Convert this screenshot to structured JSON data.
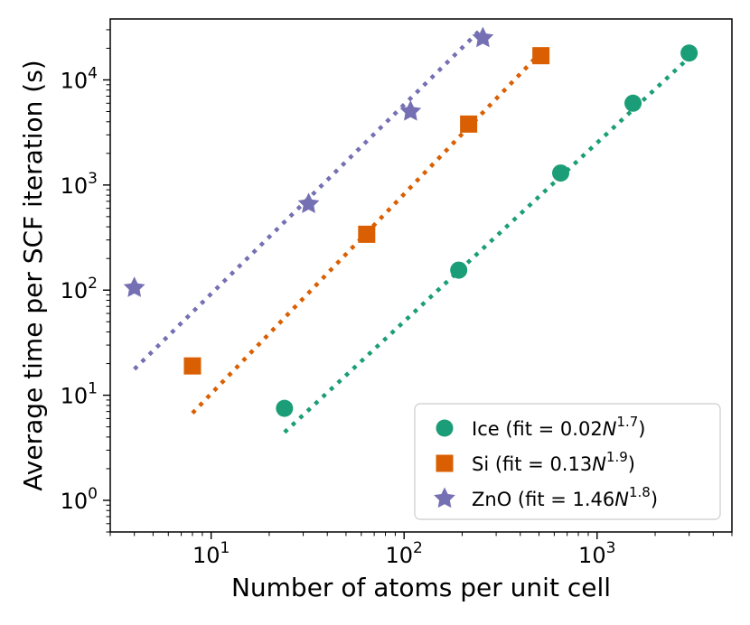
{
  "chart_data": {
    "type": "scatter",
    "scale": {
      "x": "log",
      "y": "log"
    },
    "xlim": [
      3.0,
      5000
    ],
    "ylim": [
      0.5,
      38000
    ],
    "xlabel": "Number of atoms per unit cell",
    "ylabel": "Average time per SCF iteration (s)",
    "x_ticks": [
      {
        "value": 10,
        "base": "10",
        "exp": "1"
      },
      {
        "value": 100,
        "base": "10",
        "exp": "2"
      },
      {
        "value": 1000,
        "base": "10",
        "exp": "3"
      }
    ],
    "y_ticks": [
      {
        "value": 1,
        "base": "10",
        "exp": "0"
      },
      {
        "value": 10,
        "base": "10",
        "exp": "1"
      },
      {
        "value": 100,
        "base": "10",
        "exp": "2"
      },
      {
        "value": 1000,
        "base": "10",
        "exp": "3"
      },
      {
        "value": 10000,
        "base": "10",
        "exp": "4"
      }
    ],
    "legend_position": "lower-right",
    "series": [
      {
        "key": "ice",
        "name": "Ice",
        "legend_prefix": "Ice (fit = 0.02",
        "legend_var": "N",
        "legend_exp": "1.7",
        "legend_suffix": ")",
        "marker": "circle",
        "color": "#1b9e77",
        "x": [
          24,
          192,
          648,
          1536,
          3000
        ],
        "y": [
          7.5,
          155,
          1300,
          6000,
          18000
        ],
        "fit": {
          "coef": 0.02,
          "exp": 1.7,
          "x_range": [
            24,
            3000
          ]
        }
      },
      {
        "key": "si",
        "name": "Si",
        "legend_prefix": "Si (fit = 0.13",
        "legend_var": "N",
        "legend_exp": "1.9",
        "legend_suffix": ")",
        "marker": "square",
        "color": "#d95f02",
        "x": [
          8,
          64,
          216,
          512
        ],
        "y": [
          19,
          340,
          3800,
          17000
        ],
        "fit": {
          "coef": 0.13,
          "exp": 1.9,
          "x_range": [
            8,
            512
          ]
        }
      },
      {
        "key": "zno",
        "name": "ZnO",
        "legend_prefix": "ZnO (fit = 1.46",
        "legend_var": "N",
        "legend_exp": "1.8",
        "legend_suffix": ")",
        "marker": "star",
        "color": "#7570b3",
        "x": [
          4,
          32,
          108,
          256
        ],
        "y": [
          105,
          660,
          5000,
          25000
        ],
        "fit": {
          "coef": 1.46,
          "exp": 1.8,
          "x_range": [
            4,
            256
          ]
        }
      }
    ]
  }
}
